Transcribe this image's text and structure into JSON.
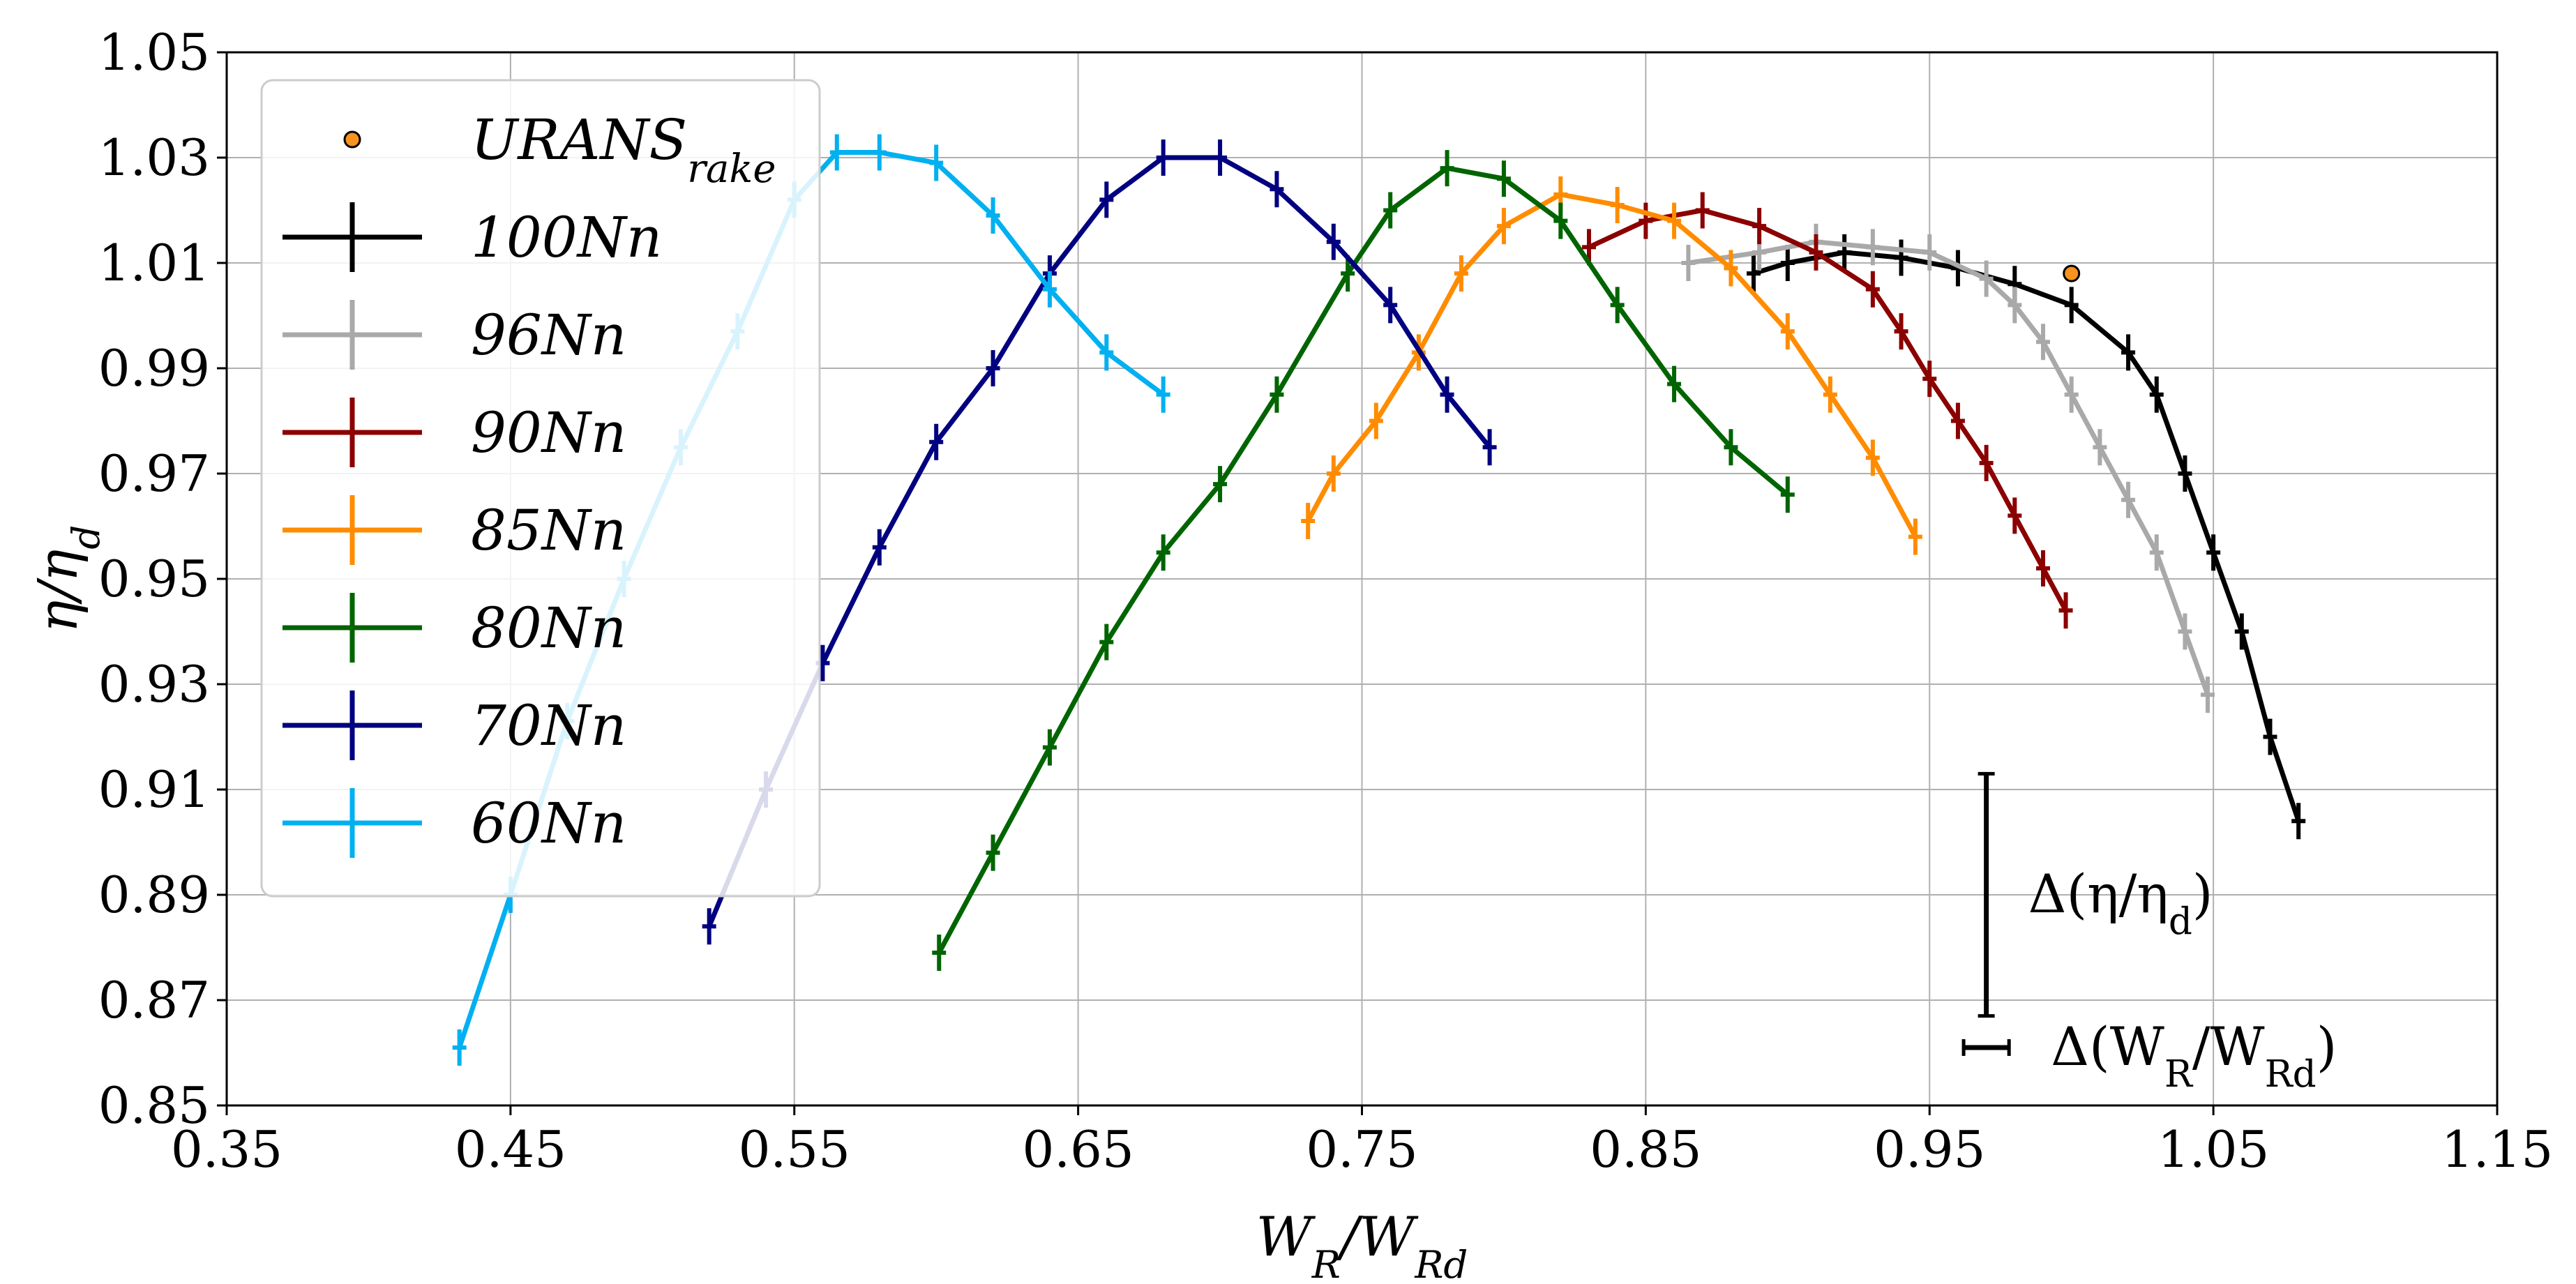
{
  "chart_data": {
    "type": "line",
    "xlabel": "W_R/W_Rd",
    "ylabel": "η/η_d",
    "xlim": [
      0.35,
      1.15
    ],
    "ylim": [
      0.85,
      1.05
    ],
    "x_ticks": [
      "0.35",
      "0.45",
      "0.55",
      "0.65",
      "0.75",
      "0.85",
      "0.95",
      "1.05",
      "1.15"
    ],
    "y_ticks": [
      "0.85",
      "0.87",
      "0.89",
      "0.91",
      "0.93",
      "0.95",
      "0.97",
      "0.99",
      "1.01",
      "1.03",
      "1.05"
    ],
    "grid": true,
    "legend_position": "top-left",
    "legend": [
      "URANS_rake",
      "100Nn",
      "96Nn",
      "90Nn",
      "85Nn",
      "80Nn",
      "70Nn",
      "60Nn"
    ],
    "urans_rake": {
      "name": "URANS_rake",
      "x": 1.0,
      "y": 1.008,
      "color": "#f7931e"
    },
    "series": [
      {
        "name": "100Nn",
        "color": "#000000",
        "x": [
          0.888,
          0.9,
          0.92,
          0.94,
          0.96,
          0.98,
          1.0,
          1.02,
          1.03,
          1.04,
          1.05,
          1.06,
          1.07,
          1.08
        ],
        "y": [
          1.008,
          1.01,
          1.012,
          1.011,
          1.009,
          1.006,
          1.002,
          0.993,
          0.985,
          0.97,
          0.955,
          0.94,
          0.92,
          0.904
        ]
      },
      {
        "name": "96Nn",
        "color": "#a9a9a9",
        "x": [
          0.865,
          0.89,
          0.91,
          0.93,
          0.95,
          0.97,
          0.98,
          0.99,
          1.0,
          1.01,
          1.02,
          1.03,
          1.04,
          1.048
        ],
        "y": [
          1.01,
          1.012,
          1.014,
          1.013,
          1.012,
          1.007,
          1.002,
          0.995,
          0.985,
          0.975,
          0.965,
          0.955,
          0.94,
          0.928
        ]
      },
      {
        "name": "90Nn",
        "color": "#8b0000",
        "x": [
          0.83,
          0.85,
          0.87,
          0.89,
          0.91,
          0.93,
          0.94,
          0.95,
          0.96,
          0.97,
          0.98,
          0.99,
          0.998
        ],
        "y": [
          1.013,
          1.018,
          1.02,
          1.017,
          1.012,
          1.005,
          0.997,
          0.988,
          0.98,
          0.972,
          0.962,
          0.952,
          0.944
        ]
      },
      {
        "name": "85Nn",
        "color": "#ff8c00",
        "x": [
          0.731,
          0.74,
          0.755,
          0.77,
          0.785,
          0.8,
          0.82,
          0.84,
          0.86,
          0.88,
          0.9,
          0.915,
          0.93,
          0.945
        ],
        "y": [
          0.961,
          0.97,
          0.98,
          0.993,
          1.008,
          1.017,
          1.023,
          1.021,
          1.018,
          1.009,
          0.997,
          0.985,
          0.973,
          0.958
        ]
      },
      {
        "name": "80Nn",
        "color": "#006400",
        "x": [
          0.601,
          0.62,
          0.64,
          0.66,
          0.68,
          0.7,
          0.72,
          0.745,
          0.76,
          0.78,
          0.8,
          0.82,
          0.84,
          0.86,
          0.88,
          0.9
        ],
        "y": [
          0.879,
          0.898,
          0.918,
          0.938,
          0.955,
          0.968,
          0.985,
          1.008,
          1.02,
          1.028,
          1.026,
          1.018,
          1.002,
          0.987,
          0.975,
          0.966
        ]
      },
      {
        "name": "70Nn",
        "color": "#000080",
        "x": [
          0.52,
          0.54,
          0.56,
          0.58,
          0.6,
          0.62,
          0.64,
          0.66,
          0.68,
          0.7,
          0.72,
          0.74,
          0.76,
          0.78,
          0.795
        ],
        "y": [
          0.884,
          0.91,
          0.934,
          0.956,
          0.976,
          0.99,
          1.008,
          1.022,
          1.03,
          1.03,
          1.024,
          1.014,
          1.002,
          0.985,
          0.975
        ]
      },
      {
        "name": "60Nn",
        "color": "#00b0f0",
        "x": [
          0.432,
          0.45,
          0.47,
          0.49,
          0.51,
          0.53,
          0.55,
          0.565,
          0.58,
          0.6,
          0.62,
          0.64,
          0.66,
          0.68
        ],
        "y": [
          0.861,
          0.89,
          0.923,
          0.95,
          0.975,
          0.997,
          1.022,
          1.031,
          1.031,
          1.029,
          1.019,
          1.005,
          0.993,
          0.985
        ]
      }
    ],
    "annotations": [
      {
        "text": "Δ(η/η_d)",
        "x": 0.97,
        "y_range": [
          0.867,
          0.913
        ]
      },
      {
        "text": "Δ(W_R/W_Rd)",
        "x_range": [
          0.962,
          0.978
        ],
        "y": 0.861
      }
    ]
  }
}
